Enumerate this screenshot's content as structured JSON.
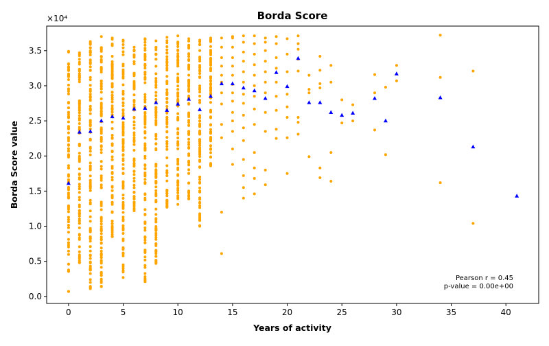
{
  "chart_data": {
    "type": "scatter",
    "title": "Borda Score",
    "xlabel": "Years of activity",
    "ylabel": "Borda Score value",
    "y_offset_label": "×10⁴",
    "y_multiplier": 10000,
    "xlim": [
      -2,
      43
    ],
    "ylim": [
      -0.1,
      3.85
    ],
    "x_ticks": [
      0,
      5,
      10,
      15,
      20,
      25,
      30,
      35,
      40
    ],
    "x_tick_labels": [
      "0",
      "5",
      "10",
      "15",
      "20",
      "25",
      "30",
      "35",
      "40"
    ],
    "y_ticks": [
      0.0,
      0.5,
      1.0,
      1.5,
      2.0,
      2.5,
      3.0,
      3.5
    ],
    "y_tick_labels": [
      "0.0",
      "0.5",
      "1.0",
      "1.5",
      "2.0",
      "2.5",
      "3.0",
      "3.5"
    ],
    "grid": false,
    "colors": {
      "points": "#FFA500",
      "means": "#0000FF"
    },
    "annotation": [
      "Pearson r = 0.45",
      "p-value = 0.00e+00"
    ],
    "mean_points": {
      "x": [
        0,
        1,
        2,
        3,
        4,
        5,
        6,
        7,
        8,
        9,
        10,
        11,
        12,
        13,
        14,
        15,
        16,
        17,
        18,
        19,
        20,
        21,
        22,
        23,
        24,
        25,
        26,
        28,
        29,
        30,
        34,
        37,
        41
      ],
      "y": [
        1.61,
        2.34,
        2.35,
        2.5,
        2.56,
        2.54,
        2.67,
        2.68,
        2.76,
        2.65,
        2.74,
        2.81,
        2.66,
        2.85,
        3.03,
        3.03,
        2.97,
        2.93,
        2.82,
        3.19,
        2.99,
        3.39,
        2.76,
        2.76,
        2.62,
        2.58,
        2.61,
        2.82,
        2.5,
        3.17,
        2.83,
        2.13,
        1.43
      ]
    },
    "scatter_points": {
      "dense_columns": [
        {
          "x": 0,
          "range": [
            0.07,
            3.49
          ]
        },
        {
          "x": 1,
          "range": [
            0.48,
            3.47
          ]
        },
        {
          "x": 2,
          "range": [
            0.11,
            3.63
          ]
        },
        {
          "x": 3,
          "range": [
            0.14,
            3.7
          ]
        },
        {
          "x": 4,
          "range": [
            0.85,
            3.68
          ]
        },
        {
          "x": 5,
          "range": [
            0.27,
            3.65
          ]
        },
        {
          "x": 6,
          "range": [
            1.22,
            3.55
          ]
        },
        {
          "x": 7,
          "range": [
            0.21,
            3.67
          ]
        },
        {
          "x": 8,
          "range": [
            0.47,
            3.64
          ]
        },
        {
          "x": 9,
          "range": [
            1.27,
            3.69
          ]
        },
        {
          "x": 10,
          "range": [
            1.31,
            3.71
          ]
        },
        {
          "x": 11,
          "range": [
            1.39,
            3.67
          ]
        },
        {
          "x": 12,
          "range": [
            1.0,
            3.65
          ]
        },
        {
          "x": 13,
          "range": [
            1.86,
            3.68
          ]
        }
      ],
      "sparse_columns": [
        {
          "x": 14,
          "y": [
            0.61,
            1.2,
            2.26,
            2.45,
            2.74,
            2.9,
            3.05,
            3.15,
            3.28,
            3.4,
            3.55,
            3.68
          ]
        },
        {
          "x": 15,
          "y": [
            1.88,
            2.1,
            2.35,
            2.5,
            2.62,
            2.78,
            2.9,
            3.02,
            3.15,
            3.28,
            3.4,
            3.55,
            3.68,
            3.7
          ]
        },
        {
          "x": 16,
          "y": [
            1.4,
            1.55,
            1.72,
            1.95,
            2.22,
            2.4,
            2.58,
            2.75,
            2.88,
            3.05,
            3.2,
            3.35,
            3.48,
            3.62,
            3.71
          ]
        },
        {
          "x": 17,
          "y": [
            1.46,
            1.68,
            1.83,
            2.05,
            2.45,
            2.67,
            2.85,
            3.0,
            3.15,
            3.3,
            3.45,
            3.6,
            3.71
          ]
        },
        {
          "x": 18,
          "y": [
            1.59,
            1.8,
            2.35,
            2.62,
            2.9,
            3.05,
            3.2,
            3.35,
            3.5,
            3.62,
            3.68
          ]
        },
        {
          "x": 19,
          "y": [
            2.25,
            2.38,
            2.65,
            2.85,
            3.05,
            3.25,
            3.4,
            3.6,
            3.7
          ]
        },
        {
          "x": 20,
          "y": [
            1.75,
            2.26,
            2.55,
            2.7,
            2.88,
            3.2,
            3.45,
            3.67
          ]
        },
        {
          "x": 21,
          "y": [
            2.31,
            2.48,
            2.55,
            3.21,
            3.38,
            3.52,
            3.6,
            3.71
          ]
        },
        {
          "x": 22,
          "y": [
            1.99,
            2.9,
            2.95,
            3.15
          ]
        },
        {
          "x": 23,
          "y": [
            1.69,
            1.83,
            2.97,
            3.03,
            3.22,
            3.42
          ]
        },
        {
          "x": 24,
          "y": [
            1.64,
            2.05,
            3.05,
            3.29
          ]
        },
        {
          "x": 25,
          "y": [
            2.47,
            2.8
          ]
        },
        {
          "x": 26,
          "y": [
            2.5,
            2.73
          ]
        },
        {
          "x": 28,
          "y": [
            2.37,
            2.9,
            3.16
          ]
        },
        {
          "x": 29,
          "y": [
            2.02,
            2.98
          ]
        },
        {
          "x": 30,
          "y": [
            3.07,
            3.29
          ]
        },
        {
          "x": 34,
          "y": [
            1.62,
            3.12,
            3.72
          ]
        },
        {
          "x": 37,
          "y": [
            1.04,
            3.21
          ]
        }
      ]
    }
  }
}
